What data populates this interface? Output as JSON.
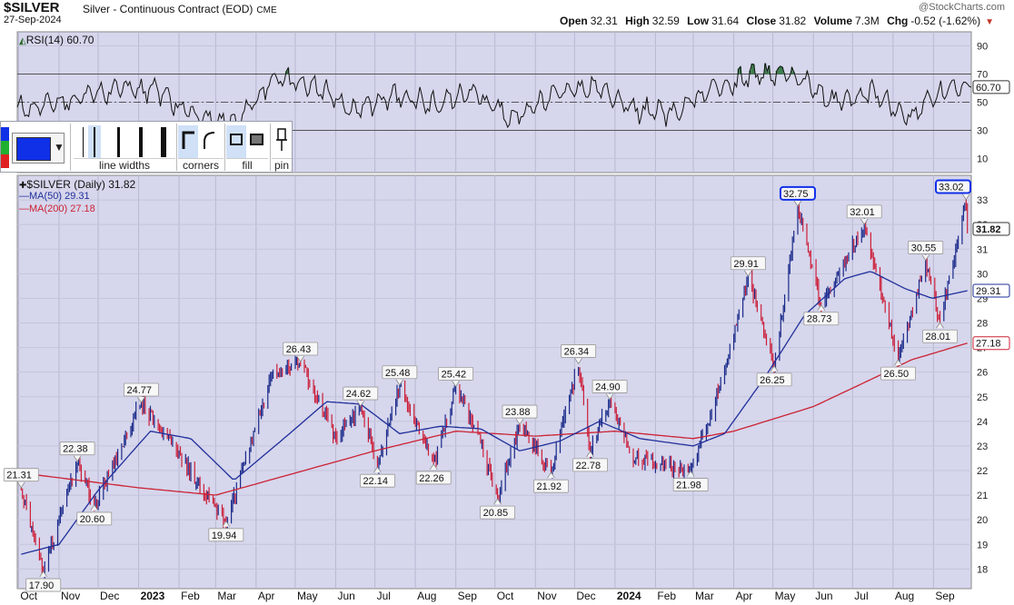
{
  "header": {
    "ticker": "$SILVER",
    "subtitle": "Silver - Continuous Contract (EOD)",
    "exchange": "CME",
    "date": "27-Sep-2024",
    "brand": "@StockCharts.com",
    "open_label": "Open",
    "open": "32.31",
    "high_label": "High",
    "high": "32.59",
    "low_label": "Low",
    "low": "31.64",
    "close_label": "Close",
    "close": "31.82",
    "volume_label": "Volume",
    "volume": "7.3M",
    "chg_label": "Chg",
    "chg": "-0.52 (-1.62%)"
  },
  "toolbar": {
    "line_widths_label": "line widths",
    "corners_label": "corners",
    "fill_label": "fill",
    "pin_label": "pin",
    "selected_color": "#1030e8",
    "swatch_colors": [
      "#1030e8",
      "#20b030",
      "#e02020"
    ]
  },
  "rsi_legend": "RSI(14) 60.70",
  "price_legend": "$SILVER (Daily) 31.82",
  "ma50_legend": "MA(50) 29.31",
  "ma200_legend": "MA(200) 27.18",
  "chart_data": [
    {
      "type": "line",
      "name": "RSI(14)",
      "ylim": [
        0,
        100
      ],
      "y_ticks": [
        10,
        30,
        50,
        70,
        90
      ],
      "reference_lines": [
        30,
        50,
        70
      ],
      "last_value": "60.70",
      "x": [
        "Oct 2022",
        "Nov 2022",
        "Dec 2022",
        "Jan 2023",
        "Feb 2023",
        "Mar 2023",
        "Apr 2023",
        "May 2023",
        "Jun 2023",
        "Jul 2023",
        "Aug 2023",
        "Sep 2023",
        "Oct 2023",
        "Nov 2023",
        "Dec 2023",
        "Jan 2024",
        "Feb 2024",
        "Mar 2024",
        "Apr 2024",
        "May 2024",
        "Jun 2024",
        "Jul 2024",
        "Aug 2024",
        "Sep 2024"
      ],
      "values": [
        45,
        52,
        60,
        58,
        40,
        35,
        68,
        62,
        44,
        55,
        48,
        58,
        38,
        55,
        62,
        45,
        42,
        60,
        68,
        72,
        50,
        58,
        40,
        60.7
      ],
      "grid": true
    },
    {
      "type": "line",
      "name": "$SILVER (Daily)",
      "color_up": "#1a2a8a",
      "color_down": "#cc1f3a",
      "ylim": [
        17.2,
        34
      ],
      "y_ticks": [
        18,
        19,
        20,
        21,
        22,
        23,
        24,
        25,
        26,
        27,
        28,
        29,
        30,
        31,
        32,
        33
      ],
      "x_ticks": [
        "Oct",
        "Nov",
        "Dec",
        "2023",
        "Feb",
        "Mar",
        "Apr",
        "May",
        "Jun",
        "Jul",
        "Aug",
        "Sep",
        "Oct",
        "Nov",
        "Dec",
        "2024",
        "Feb",
        "Mar",
        "Apr",
        "May",
        "Jun",
        "Jul",
        "Aug",
        "Sep"
      ],
      "price_points": [
        {
          "t": "Oct 3 2022",
          "v": 21.31
        },
        {
          "t": "Oct 20 2022",
          "v": 17.9
        },
        {
          "t": "Nov 15 2022",
          "v": 22.38
        },
        {
          "t": "Nov 28 2022",
          "v": 20.6
        },
        {
          "t": "Jan 3 2023",
          "v": 24.77
        },
        {
          "t": "Jan 20 2023",
          "v": 23.5
        },
        {
          "t": "Mar 9 2023",
          "v": 19.94
        },
        {
          "t": "Apr 14 2023",
          "v": 26.0
        },
        {
          "t": "May 5 2023",
          "v": 26.43
        },
        {
          "t": "Jun 1 2023",
          "v": 23.3
        },
        {
          "t": "Jun 20 2023",
          "v": 24.62
        },
        {
          "t": "Jul 3 2023",
          "v": 22.14
        },
        {
          "t": "Jul 20 2023",
          "v": 25.48
        },
        {
          "t": "Aug 15 2023",
          "v": 22.26
        },
        {
          "t": "Sep 1 2023",
          "v": 25.42
        },
        {
          "t": "Sep 20 2023",
          "v": 23.2
        },
        {
          "t": "Oct 3 2023",
          "v": 20.85
        },
        {
          "t": "Oct 20 2023",
          "v": 23.88
        },
        {
          "t": "Nov 13 2023",
          "v": 21.92
        },
        {
          "t": "Dec 4 2023",
          "v": 26.34
        },
        {
          "t": "Dec 13 2023",
          "v": 22.78
        },
        {
          "t": "Dec 28 2023",
          "v": 24.9
        },
        {
          "t": "Jan 15 2024",
          "v": 22.5
        },
        {
          "t": "Feb 28 2024",
          "v": 21.98
        },
        {
          "t": "Mar 20 2024",
          "v": 25.2
        },
        {
          "t": "Apr 12 2024",
          "v": 29.91
        },
        {
          "t": "May 2 2024",
          "v": 26.25
        },
        {
          "t": "May 20 2024",
          "v": 32.75
        },
        {
          "t": "Jun 7 2024",
          "v": 28.73
        },
        {
          "t": "Jul 10 2024",
          "v": 32.01
        },
        {
          "t": "Aug 5 2024",
          "v": 26.5
        },
        {
          "t": "Aug 26 2024",
          "v": 30.55
        },
        {
          "t": "Sep 6 2024",
          "v": 28.01
        },
        {
          "t": "Sep 26 2024",
          "v": 33.02
        },
        {
          "t": "Sep 27 2024",
          "v": 31.82
        }
      ],
      "ma50_points": [
        {
          "t": "Oct 3 2022",
          "v": 18.6
        },
        {
          "t": "Nov 1 2022",
          "v": 19.0
        },
        {
          "t": "Dec 1 2022",
          "v": 21.2
        },
        {
          "t": "Jan 10 2023",
          "v": 23.6
        },
        {
          "t": "Feb 10 2023",
          "v": 23.3
        },
        {
          "t": "Mar 15 2023",
          "v": 21.6
        },
        {
          "t": "Apr 20 2023",
          "v": 23.2
        },
        {
          "t": "May 25 2023",
          "v": 24.8
        },
        {
          "t": "Jun 20 2023",
          "v": 24.7
        },
        {
          "t": "Jul 20 2023",
          "v": 23.5
        },
        {
          "t": "Aug 20 2023",
          "v": 23.8
        },
        {
          "t": "Sep 20 2023",
          "v": 23.7
        },
        {
          "t": "Oct 20 2023",
          "v": 22.8
        },
        {
          "t": "Nov 20 2023",
          "v": 23.2
        },
        {
          "t": "Dec 20 2023",
          "v": 24.0
        },
        {
          "t": "Jan 20 2024",
          "v": 23.3
        },
        {
          "t": "Mar 1 2024",
          "v": 23.0
        },
        {
          "t": "Mar 25 2024",
          "v": 23.5
        },
        {
          "t": "Apr 25 2024",
          "v": 25.8
        },
        {
          "t": "May 25 2024",
          "v": 28.3
        },
        {
          "t": "Jun 25 2024",
          "v": 29.8
        },
        {
          "t": "Jul 15 2024",
          "v": 30.1
        },
        {
          "t": "Aug 10 2024",
          "v": 29.4
        },
        {
          "t": "Aug 31 2024",
          "v": 29.0
        },
        {
          "t": "Sep 27 2024",
          "v": 29.31
        }
      ],
      "ma200_points": [
        {
          "t": "Oct 3 2022",
          "v": 21.9
        },
        {
          "t": "Jan 1 2023",
          "v": 21.3
        },
        {
          "t": "Mar 1 2023",
          "v": 21.0
        },
        {
          "t": "May 1 2023",
          "v": 21.9
        },
        {
          "t": "Jul 1 2023",
          "v": 22.8
        },
        {
          "t": "Sep 1 2023",
          "v": 23.6
        },
        {
          "t": "Nov 1 2023",
          "v": 23.4
        },
        {
          "t": "Jan 1 2024",
          "v": 23.6
        },
        {
          "t": "Mar 1 2024",
          "v": 23.3
        },
        {
          "t": "Apr 1 2024",
          "v": 23.6
        },
        {
          "t": "Jun 1 2024",
          "v": 24.6
        },
        {
          "t": "Jul 15 2024",
          "v": 25.7
        },
        {
          "t": "Aug 15 2024",
          "v": 26.5
        },
        {
          "t": "Sep 27 2024",
          "v": 27.18
        }
      ],
      "annotations": [
        {
          "t": "Oct 3 2022",
          "v": 21.31,
          "label": "21.31"
        },
        {
          "t": "Oct 20 2022",
          "v": 17.9,
          "label": "17.90"
        },
        {
          "t": "Nov 15 2022",
          "v": 22.38,
          "label": "22.38"
        },
        {
          "t": "Nov 28 2022",
          "v": 20.6,
          "label": "20.60"
        },
        {
          "t": "Jan 3 2023",
          "v": 24.77,
          "label": "24.77"
        },
        {
          "t": "Mar 9 2023",
          "v": 19.94,
          "label": "19.94"
        },
        {
          "t": "May 5 2023",
          "v": 26.43,
          "label": "26.43"
        },
        {
          "t": "Jun 20 2023",
          "v": 24.62,
          "label": "24.62"
        },
        {
          "t": "Jul 3 2023",
          "v": 22.14,
          "label": "22.14"
        },
        {
          "t": "Jul 20 2023",
          "v": 25.48,
          "label": "25.48"
        },
        {
          "t": "Aug 15 2023",
          "v": 22.26,
          "label": "22.26"
        },
        {
          "t": "Sep 1 2023",
          "v": 25.42,
          "label": "25.42"
        },
        {
          "t": "Oct 3 2023",
          "v": 20.85,
          "label": "20.85"
        },
        {
          "t": "Oct 20 2023",
          "v": 23.88,
          "label": "23.88"
        },
        {
          "t": "Nov 13 2023",
          "v": 21.92,
          "label": "21.92"
        },
        {
          "t": "Dec 4 2023",
          "v": 26.34,
          "label": "26.34"
        },
        {
          "t": "Dec 13 2023",
          "v": 22.78,
          "label": "22.78"
        },
        {
          "t": "Dec 28 2023",
          "v": 24.9,
          "label": "24.90"
        },
        {
          "t": "Feb 28 2024",
          "v": 21.98,
          "label": "21.98"
        },
        {
          "t": "Apr 12 2024",
          "v": 29.91,
          "label": "29.91"
        },
        {
          "t": "May 2 2024",
          "v": 26.25,
          "label": "26.25"
        },
        {
          "t": "May 20 2024",
          "v": 32.75,
          "label": "32.75",
          "highlight": true
        },
        {
          "t": "Jun 7 2024",
          "v": 28.73,
          "label": "28.73"
        },
        {
          "t": "Jul 10 2024",
          "v": 32.01,
          "label": "32.01"
        },
        {
          "t": "Aug 5 2024",
          "v": 26.5,
          "label": "26.50"
        },
        {
          "t": "Aug 26 2024",
          "v": 30.55,
          "label": "30.55"
        },
        {
          "t": "Sep 6 2024",
          "v": 28.01,
          "label": "28.01"
        },
        {
          "t": "Sep 26 2024",
          "v": 33.02,
          "label": "33.02",
          "highlight": true
        }
      ],
      "last_close": "31.82",
      "ma50_last": "29.31",
      "ma200_last": "27.18",
      "grid": true
    }
  ]
}
